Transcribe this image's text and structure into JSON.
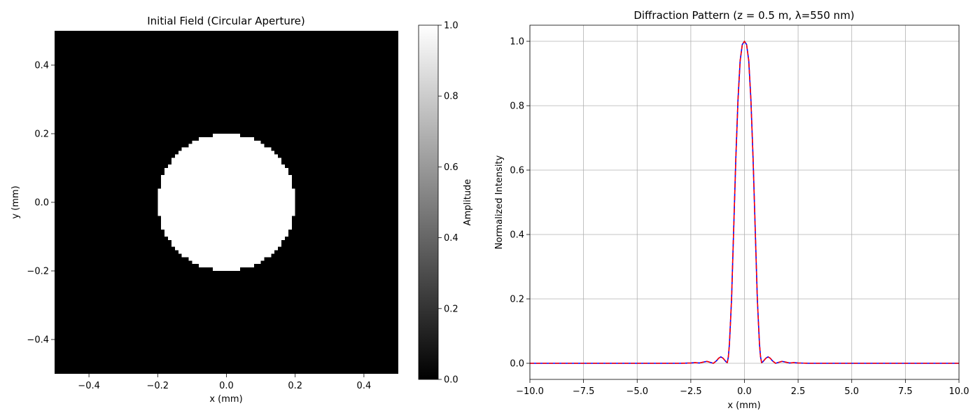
{
  "chart_data": [
    {
      "type": "heatmap",
      "title": "Initial Field (Circular Aperture)",
      "xlabel": "x (mm)",
      "ylabel": "y (mm)",
      "xlim": [
        -0.5,
        0.5
      ],
      "ylim": [
        -0.5,
        0.5
      ],
      "x_ticks": [
        -0.4,
        -0.2,
        0.0,
        0.2,
        0.4
      ],
      "y_ticks": [
        -0.4,
        -0.2,
        0.0,
        0.2,
        0.4
      ],
      "grid": false,
      "colormap": "gray",
      "aperture": {
        "shape": "circle",
        "center": [
          0.0,
          0.0
        ],
        "radius": 0.2,
        "value_inside": 1.0,
        "value_outside": 0.0
      },
      "colorbar": {
        "label": "Amplitude",
        "range": [
          0.0,
          1.0
        ],
        "ticks": [
          0.0,
          0.2,
          0.4,
          0.6,
          0.8,
          1.0
        ]
      }
    },
    {
      "type": "line",
      "title": "Diffraction Pattern (z = 0.5 m, λ=550 nm)",
      "xlabel": "x (mm)",
      "ylabel": "Normalized Intensity",
      "xlim": [
        -10,
        10
      ],
      "ylim": [
        -0.05,
        1.05
      ],
      "x_ticks": [
        -10.0,
        -7.5,
        -5.0,
        -2.5,
        0.0,
        2.5,
        5.0,
        7.5,
        10.0
      ],
      "y_ticks": [
        0.0,
        0.2,
        0.4,
        0.6,
        0.8,
        1.0
      ],
      "grid": true,
      "series": [
        {
          "color": "#0000ff",
          "style": "solid",
          "x": [
            -10,
            -3,
            -2.5,
            -2.3,
            -2.1,
            -1.9,
            -1.75,
            -1.6,
            -1.45,
            -1.3,
            -1.2,
            -1.1,
            -1.0,
            -0.9,
            -0.85,
            -0.8,
            -0.75,
            -0.7,
            -0.6,
            -0.5,
            -0.4,
            -0.3,
            -0.2,
            -0.1,
            0,
            0.1,
            0.2,
            0.3,
            0.4,
            0.5,
            0.6,
            0.7,
            0.75,
            0.8,
            0.85,
            0.9,
            1.0,
            1.1,
            1.2,
            1.3,
            1.45,
            1.6,
            1.75,
            1.9,
            2.1,
            2.3,
            2.5,
            3,
            10
          ],
          "y": [
            0,
            0,
            0.001,
            0.002,
            0.001,
            0.004,
            0.006,
            0.003,
            0.0,
            0.008,
            0.016,
            0.02,
            0.016,
            0.008,
            0.004,
            0.002,
            0.02,
            0.06,
            0.2,
            0.42,
            0.64,
            0.82,
            0.94,
            0.99,
            1.0,
            0.99,
            0.94,
            0.82,
            0.64,
            0.42,
            0.2,
            0.06,
            0.02,
            0.002,
            0.004,
            0.008,
            0.016,
            0.02,
            0.016,
            0.008,
            0.0,
            0.003,
            0.006,
            0.004,
            0.001,
            0.002,
            0.001,
            0,
            0
          ]
        },
        {
          "color": "#ff0000",
          "style": "dashed",
          "x": [
            -10,
            -3,
            -2.5,
            -2.3,
            -2.1,
            -1.9,
            -1.75,
            -1.6,
            -1.45,
            -1.3,
            -1.2,
            -1.1,
            -1.0,
            -0.9,
            -0.85,
            -0.8,
            -0.75,
            -0.7,
            -0.6,
            -0.5,
            -0.4,
            -0.3,
            -0.2,
            -0.1,
            0,
            0.1,
            0.2,
            0.3,
            0.4,
            0.5,
            0.6,
            0.7,
            0.75,
            0.8,
            0.85,
            0.9,
            1.0,
            1.1,
            1.2,
            1.3,
            1.45,
            1.6,
            1.75,
            1.9,
            2.1,
            2.3,
            2.5,
            3,
            10
          ],
          "y": [
            0,
            0,
            0.001,
            0.002,
            0.001,
            0.004,
            0.006,
            0.003,
            0.0,
            0.008,
            0.016,
            0.02,
            0.016,
            0.008,
            0.004,
            0.002,
            0.02,
            0.06,
            0.2,
            0.42,
            0.64,
            0.82,
            0.94,
            0.99,
            1.0,
            0.99,
            0.94,
            0.82,
            0.64,
            0.42,
            0.2,
            0.06,
            0.02,
            0.002,
            0.004,
            0.008,
            0.016,
            0.02,
            0.016,
            0.008,
            0.0,
            0.003,
            0.006,
            0.004,
            0.001,
            0.002,
            0.001,
            0,
            0
          ]
        }
      ]
    }
  ]
}
